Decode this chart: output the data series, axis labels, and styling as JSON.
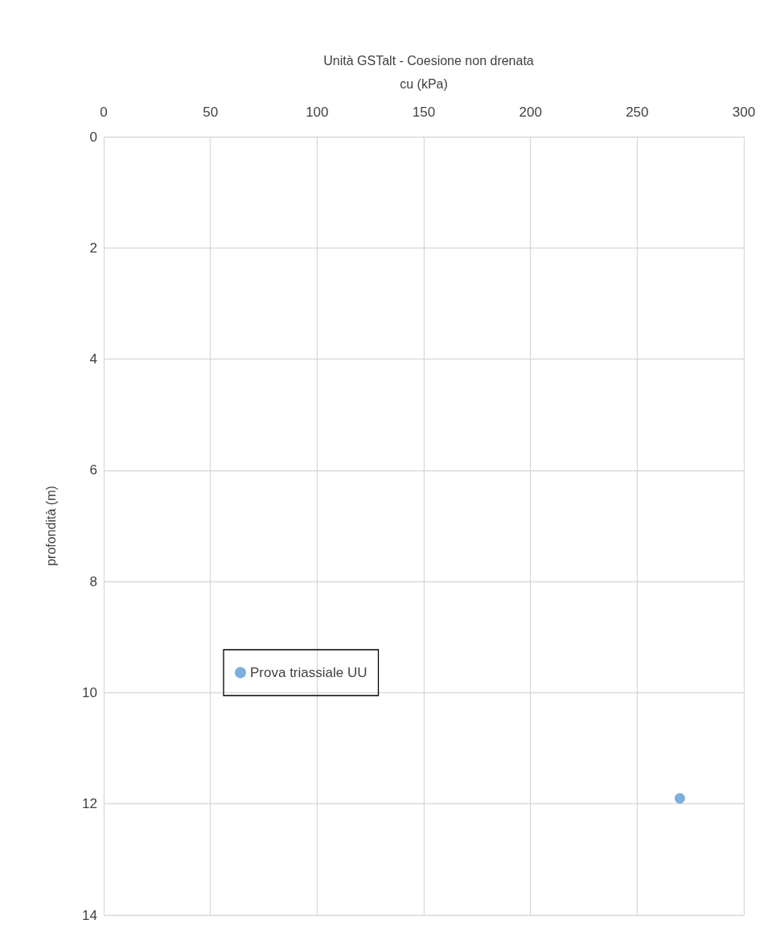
{
  "chart_data": {
    "type": "scatter",
    "title": "Unità GSTalt - Coesione non drenata",
    "xlabel": "cu (kPa)",
    "ylabel": "profondità (m)",
    "x": [
      270
    ],
    "series": [
      {
        "name": "Prova triassiale UU",
        "color": "#5b9bd5",
        "values": [
          11.9
        ]
      }
    ],
    "xlim": [
      0,
      300
    ],
    "xticks": [
      0,
      50,
      100,
      150,
      200,
      250,
      300
    ],
    "ylim": [
      14,
      0
    ],
    "yticks": [
      0,
      2,
      4,
      6,
      8,
      10,
      12,
      14
    ],
    "grid": true,
    "legend": "bottom left",
    "marker": "circle"
  }
}
